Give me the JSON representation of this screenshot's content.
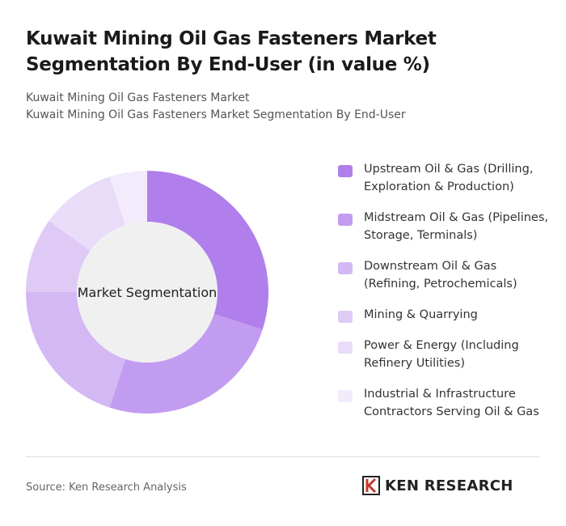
{
  "chart_data": {
    "type": "donut",
    "title": "Kuwait Mining Oil Gas Fasteners Market Segmentation By End-User (in value %)",
    "subtitle": [
      "Kuwait Mining Oil Gas Fasteners Market",
      "Kuwait Mining Oil Gas Fasteners Market Segmentation By End-User"
    ],
    "center_label": "Market Segmentation",
    "categories": [
      "Upstream Oil & Gas (Drilling, Exploration & Production)",
      "Midstream Oil & Gas (Pipelines, Storage, Terminals)",
      "Downstream Oil & Gas (Refining, Petrochemicals)",
      "Mining & Quarrying",
      "Power & Energy (Including Refinery Utilities)",
      "Industrial & Infrastructure Contractors Serving Oil & Gas"
    ],
    "values": [
      30,
      25,
      20,
      10,
      10,
      5
    ],
    "colors": [
      "#b07fec",
      "#c29cf0",
      "#d3b8f4",
      "#dfcaf6",
      "#e8dcf9",
      "#f2ebfc"
    ]
  },
  "source": "Source: Ken Research Analysis",
  "brand": "KEN RESEARCH"
}
